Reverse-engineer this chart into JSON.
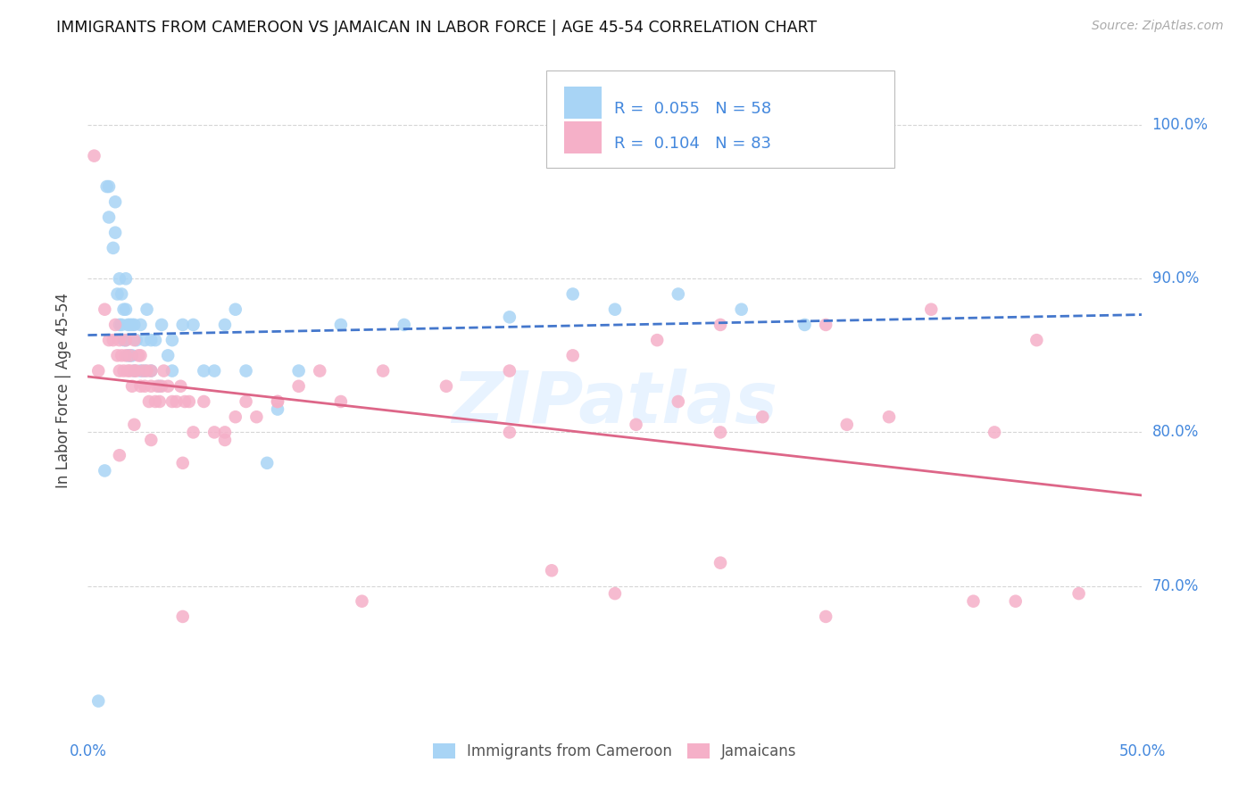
{
  "title": "IMMIGRANTS FROM CAMEROON VS JAMAICAN IN LABOR FORCE | AGE 45-54 CORRELATION CHART",
  "source": "Source: ZipAtlas.com",
  "ylabel": "In Labor Force | Age 45-54",
  "legend_label1": "Immigrants from Cameroon",
  "legend_label2": "Jamaicans",
  "R1": "0.055",
  "N1": "58",
  "R2": "0.104",
  "N2": "83",
  "color_blue": "#a8d4f5",
  "color_pink": "#f5b0c8",
  "color_blue_text": "#4488dd",
  "color_blue_line": "#4477cc",
  "color_pink_line": "#dd6688",
  "xlim": [
    0.0,
    0.5
  ],
  "ylim": [
    0.615,
    1.04
  ],
  "yticks": [
    0.7,
    0.8,
    0.9,
    1.0
  ],
  "yticklabels": [
    "70.0%",
    "80.0%",
    "90.0%",
    "100.0%"
  ],
  "watermark_text": "ZIPatlas",
  "cameroon_x": [
    0.005,
    0.008,
    0.009,
    0.01,
    0.01,
    0.012,
    0.013,
    0.013,
    0.014,
    0.015,
    0.015,
    0.016,
    0.016,
    0.017,
    0.017,
    0.018,
    0.018,
    0.018,
    0.019,
    0.019,
    0.02,
    0.02,
    0.021,
    0.021,
    0.022,
    0.022,
    0.023,
    0.025,
    0.025,
    0.027,
    0.027,
    0.028,
    0.03,
    0.03,
    0.032,
    0.034,
    0.035,
    0.038,
    0.04,
    0.04,
    0.045,
    0.05,
    0.055,
    0.06,
    0.065,
    0.07,
    0.075,
    0.085,
    0.09,
    0.1,
    0.12,
    0.15,
    0.2,
    0.23,
    0.25,
    0.28,
    0.31,
    0.34
  ],
  "cameroon_y": [
    0.625,
    0.775,
    0.96,
    0.94,
    0.96,
    0.92,
    0.93,
    0.95,
    0.89,
    0.87,
    0.9,
    0.87,
    0.89,
    0.86,
    0.88,
    0.86,
    0.88,
    0.9,
    0.85,
    0.87,
    0.85,
    0.87,
    0.85,
    0.87,
    0.84,
    0.87,
    0.86,
    0.84,
    0.87,
    0.84,
    0.86,
    0.88,
    0.84,
    0.86,
    0.86,
    0.83,
    0.87,
    0.85,
    0.84,
    0.86,
    0.87,
    0.87,
    0.84,
    0.84,
    0.87,
    0.88,
    0.84,
    0.78,
    0.815,
    0.84,
    0.87,
    0.87,
    0.875,
    0.89,
    0.88,
    0.89,
    0.88,
    0.87
  ],
  "jamaican_x": [
    0.003,
    0.005,
    0.008,
    0.01,
    0.012,
    0.013,
    0.014,
    0.015,
    0.015,
    0.016,
    0.017,
    0.018,
    0.018,
    0.019,
    0.02,
    0.02,
    0.021,
    0.022,
    0.022,
    0.023,
    0.024,
    0.025,
    0.025,
    0.026,
    0.027,
    0.028,
    0.029,
    0.03,
    0.03,
    0.032,
    0.033,
    0.034,
    0.035,
    0.036,
    0.038,
    0.04,
    0.042,
    0.044,
    0.046,
    0.048,
    0.05,
    0.055,
    0.06,
    0.065,
    0.07,
    0.075,
    0.08,
    0.09,
    0.1,
    0.11,
    0.12,
    0.14,
    0.17,
    0.2,
    0.23,
    0.27,
    0.3,
    0.35,
    0.4,
    0.45,
    0.015,
    0.022,
    0.03,
    0.045,
    0.065,
    0.09,
    0.2,
    0.26,
    0.3,
    0.36,
    0.43,
    0.28,
    0.32,
    0.38,
    0.045,
    0.13,
    0.25,
    0.35,
    0.44,
    0.22,
    0.3,
    0.42,
    0.47
  ],
  "jamaican_y": [
    0.98,
    0.84,
    0.88,
    0.86,
    0.86,
    0.87,
    0.85,
    0.84,
    0.86,
    0.85,
    0.84,
    0.85,
    0.86,
    0.84,
    0.84,
    0.85,
    0.83,
    0.84,
    0.86,
    0.84,
    0.85,
    0.83,
    0.85,
    0.84,
    0.83,
    0.84,
    0.82,
    0.83,
    0.84,
    0.82,
    0.83,
    0.82,
    0.83,
    0.84,
    0.83,
    0.82,
    0.82,
    0.83,
    0.82,
    0.82,
    0.8,
    0.82,
    0.8,
    0.8,
    0.81,
    0.82,
    0.81,
    0.82,
    0.83,
    0.84,
    0.82,
    0.84,
    0.83,
    0.84,
    0.85,
    0.86,
    0.87,
    0.87,
    0.88,
    0.86,
    0.785,
    0.805,
    0.795,
    0.78,
    0.795,
    0.82,
    0.8,
    0.805,
    0.8,
    0.805,
    0.8,
    0.82,
    0.81,
    0.81,
    0.68,
    0.69,
    0.695,
    0.68,
    0.69,
    0.71,
    0.715,
    0.69,
    0.695
  ]
}
